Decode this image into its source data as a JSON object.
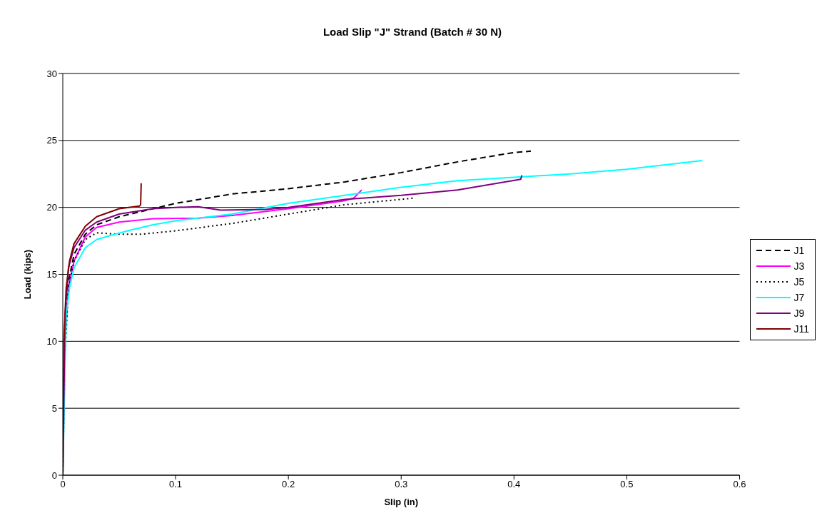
{
  "chart_data": {
    "type": "line",
    "title": "Load Slip \"J\" Strand (Batch # 30 N)",
    "xlabel": "Slip (in)",
    "ylabel": "Load (kips)",
    "xlim": [
      0,
      0.6
    ],
    "xticks": [
      0,
      0.1,
      0.2,
      0.3,
      0.4,
      0.5,
      0.6
    ],
    "ylim": [
      0,
      30
    ],
    "yticks": [
      0,
      5,
      10,
      15,
      20,
      25,
      30
    ],
    "grid": "y",
    "legend": "right",
    "marker": "none",
    "series": [
      {
        "name": "J1",
        "color": "#000000",
        "line_style": "dashed",
        "x": [
          0,
          0.001,
          0.004,
          0.01,
          0.02,
          0.03,
          0.05,
          0.08,
          0.1,
          0.15,
          0.2,
          0.25,
          0.3,
          0.35,
          0.4,
          0.415
        ],
        "values": [
          0,
          8,
          14,
          16.5,
          18,
          18.7,
          19.3,
          19.9,
          20.3,
          21,
          21.4,
          21.9,
          22.6,
          23.4,
          24.1,
          24.2
        ]
      },
      {
        "name": "J3",
        "color": "#ff00ff",
        "line_style": "solid",
        "x": [
          0,
          0.002,
          0.005,
          0.01,
          0.02,
          0.03,
          0.05,
          0.08,
          0.12,
          0.15,
          0.2,
          0.25,
          0.258,
          0.265
        ],
        "values": [
          0,
          10,
          14,
          16,
          17.8,
          18.5,
          18.9,
          19.15,
          19.2,
          19.4,
          19.9,
          20.5,
          20.7,
          21.3
        ]
      },
      {
        "name": "J5",
        "color": "#000000",
        "line_style": "dotted",
        "x": [
          0,
          0.002,
          0.005,
          0.01,
          0.02,
          0.03,
          0.05,
          0.07,
          0.1,
          0.15,
          0.2,
          0.25,
          0.3,
          0.312
        ],
        "values": [
          0,
          9,
          14,
          16,
          17.6,
          18.1,
          18,
          18,
          18.25,
          18.8,
          19.5,
          20.2,
          20.6,
          20.7
        ]
      },
      {
        "name": "J7",
        "color": "#00ffff",
        "line_style": "solid",
        "x": [
          0,
          0.003,
          0.006,
          0.01,
          0.02,
          0.03,
          0.04,
          0.06,
          0.08,
          0.1,
          0.15,
          0.2,
          0.25,
          0.3,
          0.35,
          0.4,
          0.45,
          0.5,
          0.567
        ],
        "values": [
          0,
          12,
          14,
          15.5,
          17,
          17.6,
          17.85,
          18.3,
          18.7,
          19,
          19.5,
          20.3,
          20.9,
          21.5,
          22,
          22.25,
          22.5,
          22.85,
          23.5
        ]
      },
      {
        "name": "J9",
        "color": "#800080",
        "line_style": "solid",
        "x": [
          0,
          0.002,
          0.005,
          0.01,
          0.02,
          0.03,
          0.05,
          0.08,
          0.1,
          0.12,
          0.14,
          0.18,
          0.2,
          0.25,
          0.3,
          0.35,
          0.406,
          0.407
        ],
        "values": [
          0,
          12,
          15.5,
          17,
          18.3,
          18.9,
          19.5,
          19.9,
          20,
          20.05,
          19.8,
          19.85,
          20,
          20.6,
          20.9,
          21.3,
          22.1,
          22.4
        ]
      },
      {
        "name": "J11",
        "color": "#800000",
        "line_style": "solid",
        "x": [
          0,
          0.001,
          0.003,
          0.006,
          0.01,
          0.02,
          0.03,
          0.05,
          0.068,
          0.069,
          0.0695
        ],
        "values": [
          0,
          10,
          14,
          16,
          17.3,
          18.6,
          19.3,
          19.9,
          20.1,
          20.2,
          21.8
        ]
      }
    ]
  }
}
